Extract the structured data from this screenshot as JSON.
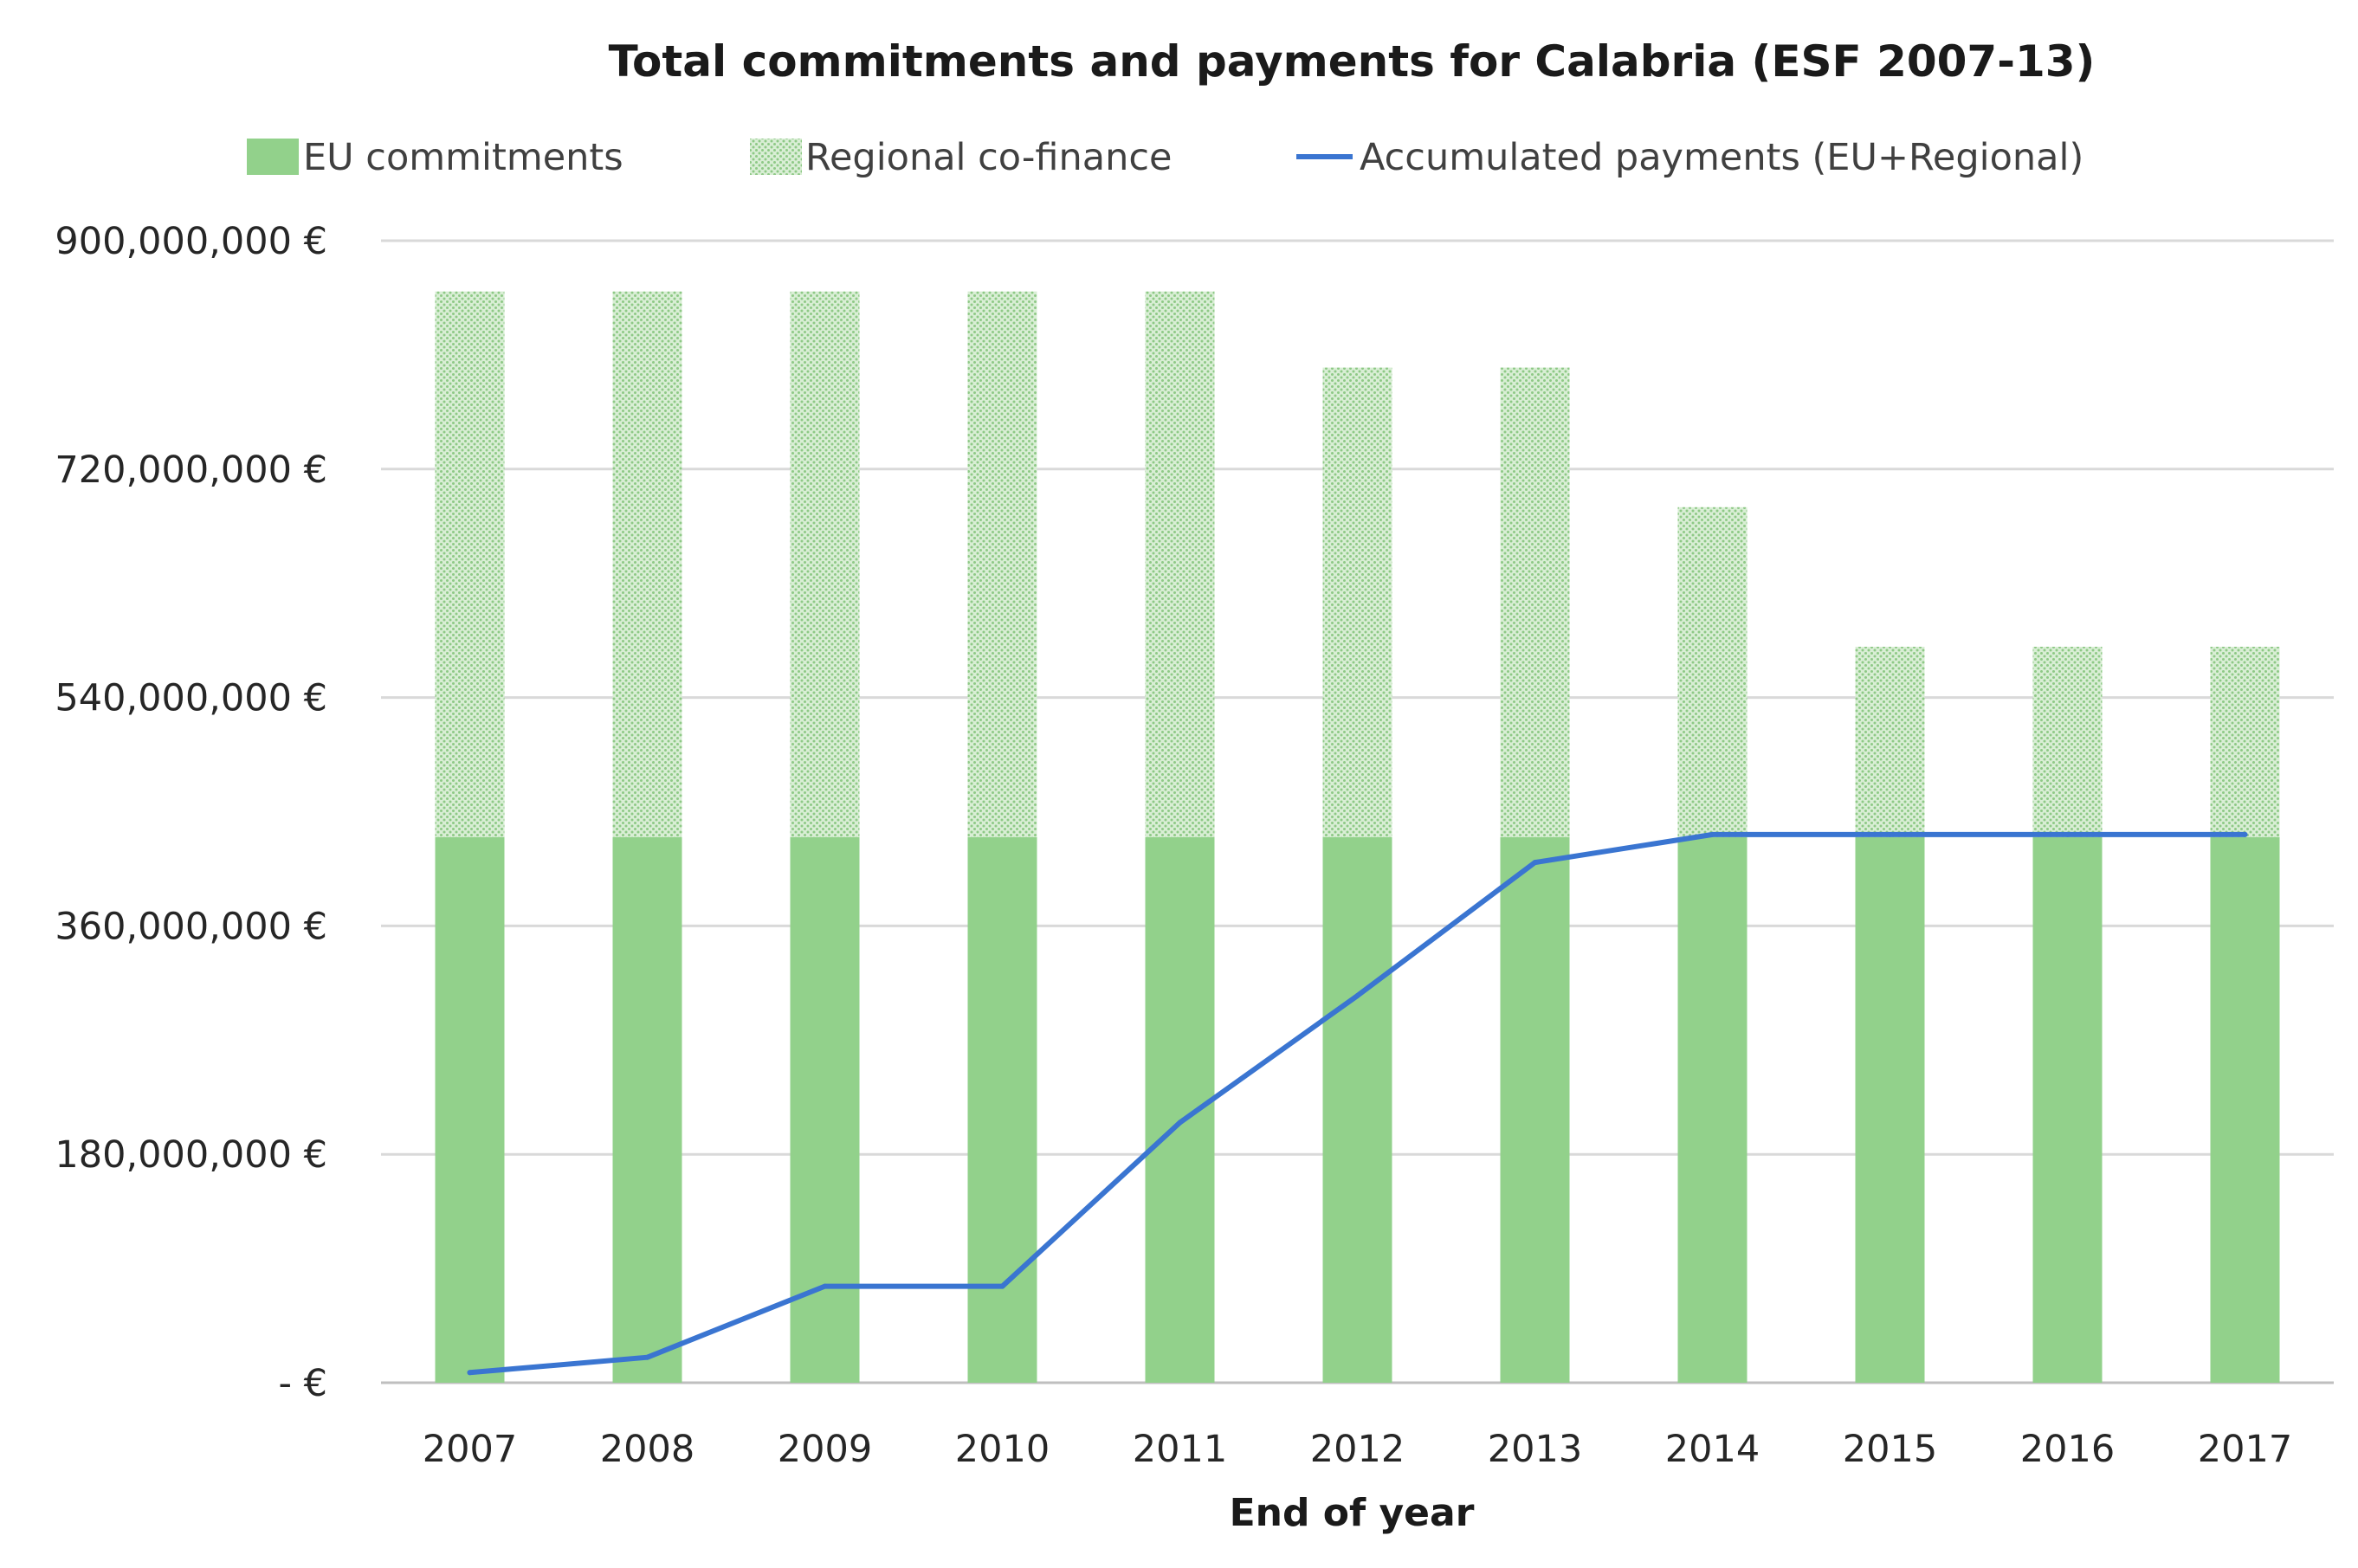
{
  "chart_data": {
    "type": "bar",
    "stacked": true,
    "title": "Total commitments and payments for Calabria (ESF 2007-13)",
    "xlabel": "End of year",
    "ylabel": "",
    "categories": [
      "2007",
      "2008",
      "2009",
      "2010",
      "2011",
      "2012",
      "2013",
      "2014",
      "2015",
      "2016",
      "2017"
    ],
    "ylim": [
      0,
      900000000
    ],
    "yticks": [
      {
        "value": 0,
        "label": "- €"
      },
      {
        "value": 180000000,
        "label": "180,000,000 €"
      },
      {
        "value": 360000000,
        "label": "360,000,000 €"
      },
      {
        "value": 540000000,
        "label": "540,000,000 €"
      },
      {
        "value": 720000000,
        "label": "720,000,000 €"
      },
      {
        "value": 900000000,
        "label": "900,000,000 €"
      }
    ],
    "grid": true,
    "legend_position": "top",
    "series": [
      {
        "name": "EU commitments",
        "kind": "bar",
        "color": "#92d18b",
        "values": [
          430000000,
          430000000,
          430000000,
          430000000,
          430000000,
          430000000,
          430000000,
          430000000,
          430000000,
          430000000,
          430000000
        ]
      },
      {
        "name": "Regional co-finance",
        "kind": "bar",
        "pattern": "dotted",
        "color": "#c6e4c1",
        "values": [
          430000000,
          430000000,
          430000000,
          430000000,
          430000000,
          370000000,
          370000000,
          260000000,
          150000000,
          150000000,
          150000000
        ]
      },
      {
        "name": "Accumulated payments (EU+Regional)",
        "kind": "line",
        "color": "#3a75d1",
        "values": [
          8000000,
          20000000,
          76000000,
          76000000,
          205000000,
          305000000,
          410000000,
          432000000,
          432000000,
          432000000,
          432000000
        ]
      }
    ]
  }
}
